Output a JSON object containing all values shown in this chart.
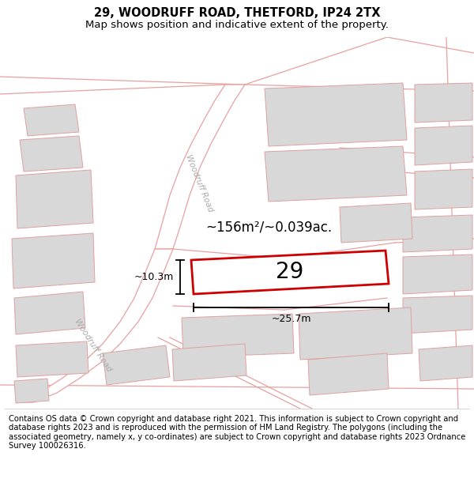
{
  "title": "29, WOODRUFF ROAD, THETFORD, IP24 2TX",
  "subtitle": "Map shows position and indicative extent of the property.",
  "footer": "Contains OS data © Crown copyright and database right 2021. This information is subject to Crown copyright and database rights 2023 and is reproduced with the permission of HM Land Registry. The polygons (including the associated geometry, namely x, y co-ordinates) are subject to Crown copyright and database rights 2023 Ordnance Survey 100026316.",
  "road_color": "#e8a0a0",
  "building_fill": "#d8d8d8",
  "building_edge": "#e0a0a0",
  "highlight_label": "29",
  "area_text": "~156m²/~0.039ac.",
  "dim_width": "~25.7m",
  "dim_height": "~10.3m",
  "title_fontsize": 10.5,
  "subtitle_fontsize": 9.5,
  "footer_fontsize": 7.2
}
